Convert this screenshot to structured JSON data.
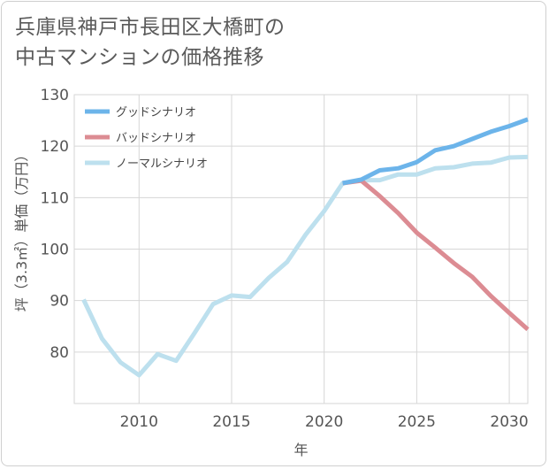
{
  "title": {
    "line1": "兵庫県神戸市長田区大橋町の",
    "line2": "中古マンションの価格推移"
  },
  "chart_data": {
    "type": "line",
    "xlabel": "年",
    "ylabel": "坪（3.3㎡）単価（万円）",
    "xlim": [
      2006.5,
      2031
    ],
    "ylim": [
      70,
      130
    ],
    "x_ticks": [
      2010,
      2015,
      2020,
      2025,
      2030
    ],
    "y_ticks": [
      80,
      90,
      100,
      110,
      120,
      130
    ],
    "grid": true,
    "legend_position": "top-left",
    "series": [
      {
        "name": "グッドシナリオ",
        "color": "#6cb4ea",
        "x": [
          2021,
          2022,
          2023,
          2024,
          2025,
          2026,
          2027,
          2028,
          2029,
          2030,
          2031
        ],
        "values": [
          112.8,
          113.5,
          115.3,
          115.7,
          116.9,
          119.2,
          120.0,
          121.4,
          122.8,
          123.9,
          125.2
        ]
      },
      {
        "name": "バッドシナリオ",
        "color": "#dc8c93",
        "x": [
          2021,
          2022,
          2023,
          2024,
          2025,
          2026,
          2027,
          2028,
          2029,
          2030,
          2031
        ],
        "values": [
          112.8,
          113.3,
          110.3,
          107.0,
          103.2,
          100.3,
          97.3,
          94.6,
          90.9,
          87.6,
          84.4
        ]
      },
      {
        "name": "ノーマルシナリオ",
        "color": "#bde0ee",
        "x": [
          2007,
          2008,
          2009,
          2010,
          2011,
          2012,
          2013,
          2014,
          2015,
          2016,
          2017,
          2018,
          2019,
          2020,
          2021,
          2022,
          2023,
          2024,
          2025,
          2026,
          2027,
          2028,
          2029,
          2030,
          2031
        ],
        "values": [
          90.2,
          82.6,
          78.0,
          75.5,
          79.6,
          78.3,
          83.7,
          89.3,
          91.0,
          90.7,
          94.4,
          97.5,
          102.8,
          107.4,
          112.8,
          113.4,
          113.4,
          114.5,
          114.5,
          115.7,
          115.9,
          116.6,
          116.8,
          117.8,
          117.9
        ]
      }
    ]
  }
}
